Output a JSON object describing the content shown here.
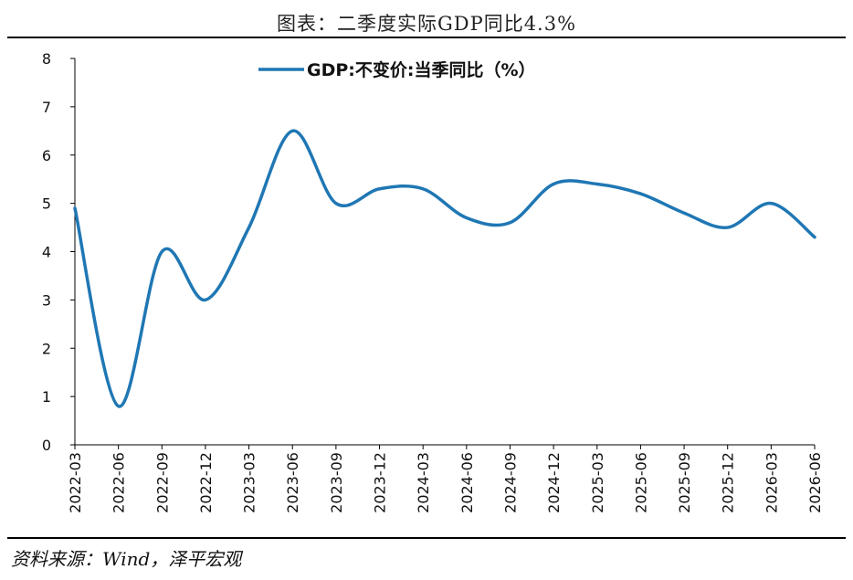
{
  "title": "图表：二季度实际GDP同比4.3%",
  "source": "资料来源：Wind，泽平宏观",
  "colors": {
    "line": "#1f77b4",
    "axis": "#000000",
    "text": "#111111"
  },
  "chart_data": {
    "type": "line",
    "title": "图表：二季度实际GDP同比4.3%",
    "xlabel": "",
    "ylabel": "",
    "ylim": [
      0,
      8
    ],
    "yticks": [
      0,
      1,
      2,
      3,
      4,
      5,
      6,
      7,
      8
    ],
    "grid": false,
    "legend_position": "top-center",
    "categories": [
      "2022-03",
      "2022-06",
      "2022-09",
      "2022-12",
      "2023-03",
      "2023-06",
      "2023-09",
      "2023-12",
      "2024-03",
      "2024-06",
      "2024-09",
      "2024-12",
      "2025-03",
      "2025-06",
      "2025-09",
      "2025-12",
      "2026-03",
      "2026-06"
    ],
    "series": [
      {
        "name": "GDP:不变价:当季同比（%）",
        "color": "#1f77b4",
        "values": [
          4.9,
          0.8,
          4.0,
          3.0,
          4.5,
          6.5,
          5.0,
          5.3,
          5.3,
          4.7,
          4.6,
          5.4,
          5.4,
          5.2,
          4.8,
          4.5,
          5.0,
          4.3
        ]
      }
    ]
  }
}
